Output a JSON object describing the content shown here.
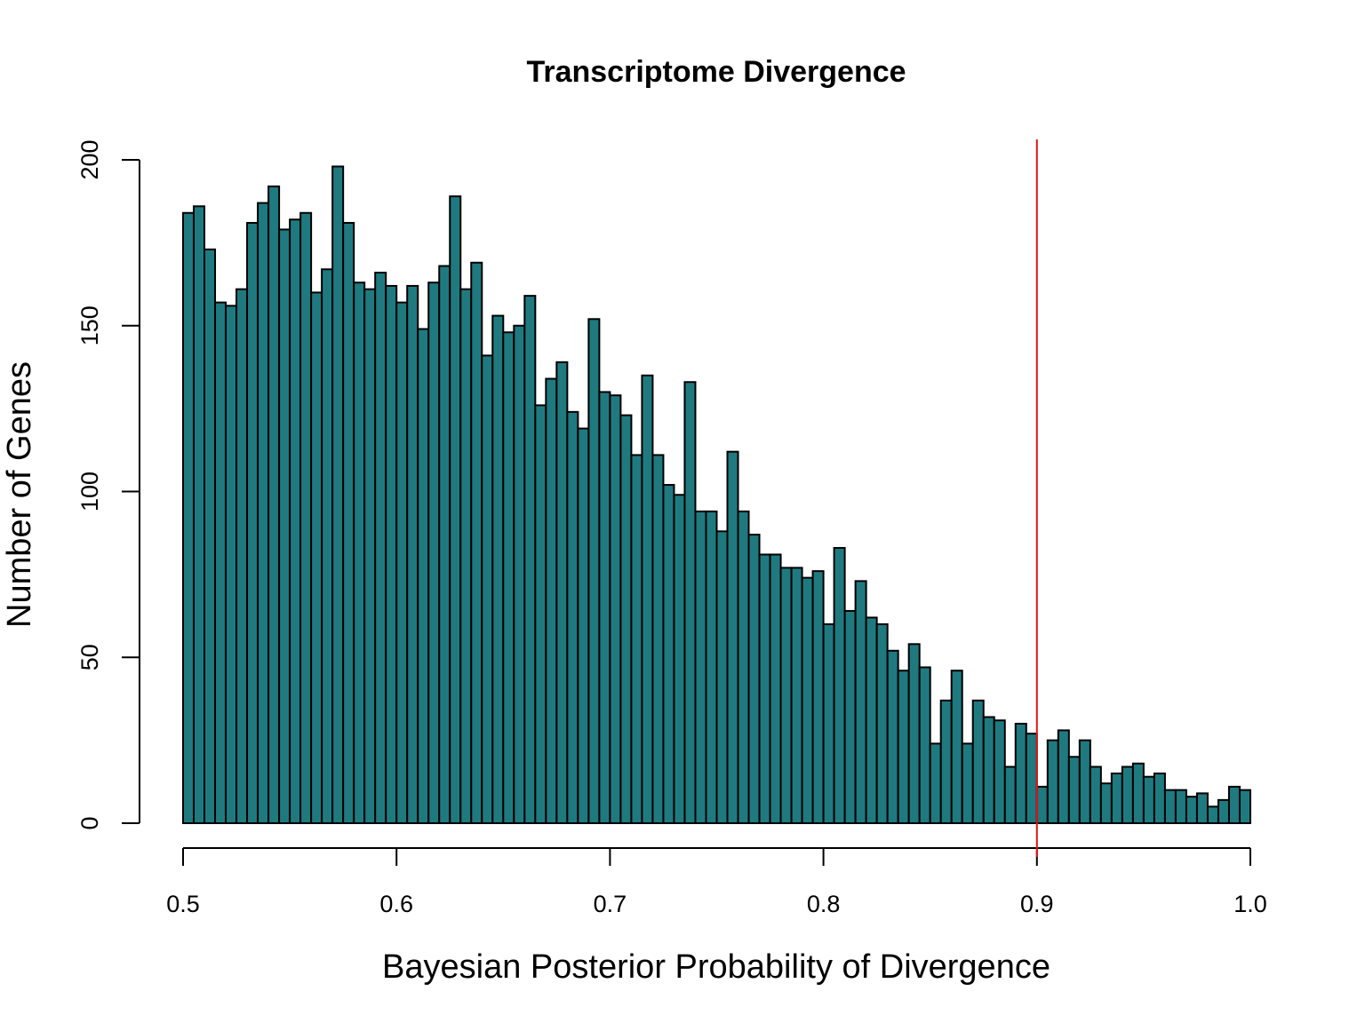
{
  "chart_data": {
    "type": "bar",
    "title": "Transcriptome Divergence",
    "xlabel": "Bayesian Posterior Probability of Divergence",
    "ylabel": "Number of Genes",
    "bin_start": 0.5,
    "bin_end": 1.0,
    "bin_width": 0.005,
    "values": [
      184,
      186,
      173,
      157,
      156,
      161,
      181,
      187,
      192,
      179,
      182,
      184,
      160,
      167,
      198,
      181,
      163,
      161,
      166,
      162,
      157,
      162,
      149,
      163,
      168,
      189,
      161,
      169,
      141,
      153,
      148,
      150,
      159,
      126,
      134,
      139,
      124,
      119,
      152,
      130,
      129,
      123,
      111,
      135,
      111,
      102,
      99,
      133,
      94,
      94,
      88,
      112,
      94,
      87,
      81,
      81,
      77,
      77,
      74,
      76,
      60,
      83,
      64,
      73,
      62,
      60,
      52,
      46,
      54,
      47,
      24,
      37,
      46,
      24,
      37,
      32,
      31,
      17,
      30,
      27,
      11,
      25,
      28,
      20,
      25,
      17,
      12,
      15,
      17,
      18,
      14,
      15,
      10,
      10,
      8,
      9,
      5,
      7,
      11,
      10
    ],
    "xlim": [
      0.5,
      1.0
    ],
    "ylim": [
      0,
      200
    ],
    "xticks": [
      "0.5",
      "0.6",
      "0.7",
      "0.8",
      "0.9",
      "1.0"
    ],
    "yticks": [
      "0",
      "50",
      "100",
      "150",
      "200"
    ],
    "threshold_line": 0.9,
    "colors": {
      "bar_fill": "#1f7a80",
      "bar_stroke": "#000000",
      "threshold": "#e3141a"
    },
    "grid": false,
    "legend": "none"
  }
}
